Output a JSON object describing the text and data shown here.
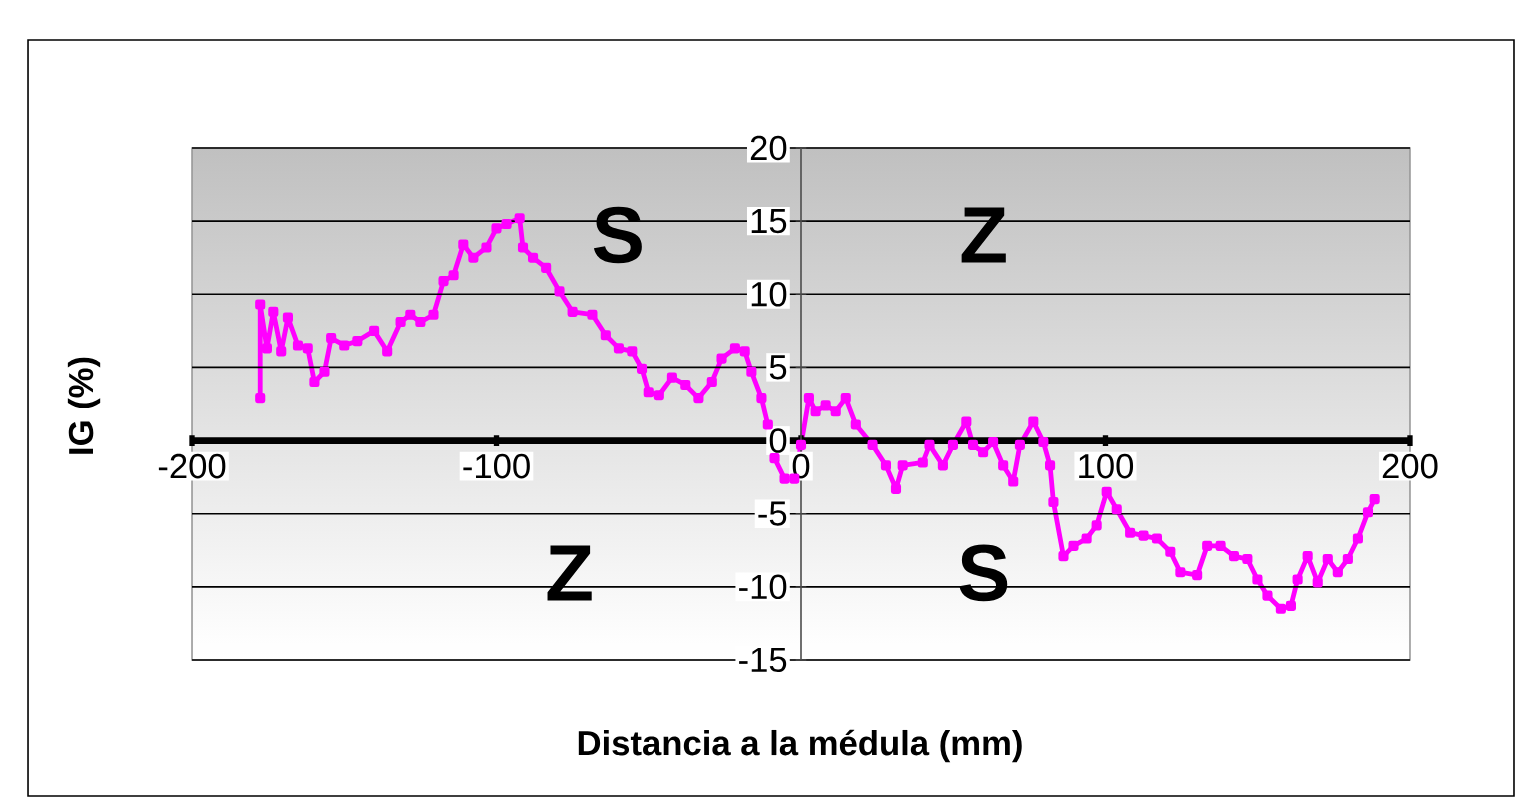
{
  "chart_data": {
    "type": "line",
    "xlabel": "Distancia a la médula (mm)",
    "ylabel": "IG (%)",
    "xlim": [
      -200,
      200
    ],
    "xticks": [
      -200,
      -100,
      0,
      100,
      200
    ],
    "ylim": [
      -15,
      20
    ],
    "yticks": [
      -15,
      -10,
      -5,
      0,
      5,
      10,
      15,
      20
    ],
    "grid": "y",
    "marker": "square",
    "line_style": "solid",
    "annotations": [
      "S",
      "Z",
      "Z",
      "S"
    ],
    "series": [
      {
        "color": "#ff00ff",
        "x": [
          -177.6,
          -177.6,
          -175.4,
          -173.3,
          -170.7,
          -168.5,
          -165.2,
          -162,
          -159.8,
          -156.5,
          -154.3,
          -150,
          -145.7,
          -140.2,
          -135.9,
          -131.5,
          -128.3,
          -125,
          -120.7,
          -117.4,
          -114.1,
          -110.9,
          -107.6,
          -103.3,
          -100,
          -96.7,
          -92.4,
          -91.3,
          -88,
          -83.7,
          -79.3,
          -75,
          -68.5,
          -64.1,
          -59.8,
          -55.4,
          -52.2,
          -50,
          -46.7,
          -42.4,
          -38,
          -33.7,
          -29.3,
          -26.1,
          -21.7,
          -18.5,
          -16.3,
          -13,
          -10.9,
          -8.7,
          -5.4,
          -2.2,
          0,
          2.6,
          4.8,
          8.1,
          11.4,
          14.7,
          18,
          23.5,
          27.9,
          31.2,
          33.4,
          40,
          42.2,
          46.6,
          49.9,
          54.3,
          56.5,
          59.8,
          63.1,
          66.4,
          69.7,
          71.9,
          76.3,
          79.6,
          81.8,
          82.9,
          86.2,
          89.5,
          93.8,
          97.1,
          100.4,
          103.7,
          108.1,
          112.5,
          116.9,
          121.3,
          124.6,
          130.1,
          133.4,
          137.8,
          142.2,
          146.6,
          149.9,
          153.2,
          157.6,
          160.9,
          163.1,
          166.4,
          169.7,
          173,
          176.3,
          179.6,
          182.9,
          186.2,
          188.4
        ],
        "values": [
          2.9,
          9.3,
          6.3,
          8.8,
          6.1,
          8.4,
          6.5,
          6.3,
          4.0,
          4.7,
          7.0,
          6.5,
          6.8,
          7.5,
          6.1,
          8.1,
          8.6,
          8.1,
          8.6,
          10.9,
          11.3,
          13.4,
          12.5,
          13.2,
          14.5,
          14.8,
          15.2,
          13.2,
          12.5,
          11.8,
          10.2,
          8.8,
          8.6,
          7.2,
          6.3,
          6.1,
          4.9,
          3.3,
          3.1,
          4.3,
          3.8,
          2.9,
          4.0,
          5.6,
          6.3,
          6.1,
          4.7,
          2.9,
          1.1,
          -1.2,
          -2.6,
          -2.6,
          -0.3,
          2.9,
          2.0,
          2.4,
          2.0,
          2.9,
          1.1,
          -0.3,
          -1.7,
          -3.3,
          -1.7,
          -1.5,
          -0.3,
          -1.7,
          -0.3,
          1.3,
          -0.3,
          -0.8,
          -0.1,
          -1.7,
          -2.8,
          -0.3,
          1.3,
          -0.1,
          -1.7,
          -4.2,
          -7.9,
          -7.2,
          -6.7,
          -5.8,
          -3.5,
          -4.7,
          -6.3,
          -6.5,
          -6.7,
          -7.6,
          -9.0,
          -9.2,
          -7.2,
          -7.2,
          -7.9,
          -8.1,
          -9.5,
          -10.6,
          -11.5,
          -11.3,
          -9.5,
          -7.9,
          -9.7,
          -8.1,
          -9.0,
          -8.1,
          -6.7,
          -4.9,
          -4.0
        ]
      }
    ]
  }
}
